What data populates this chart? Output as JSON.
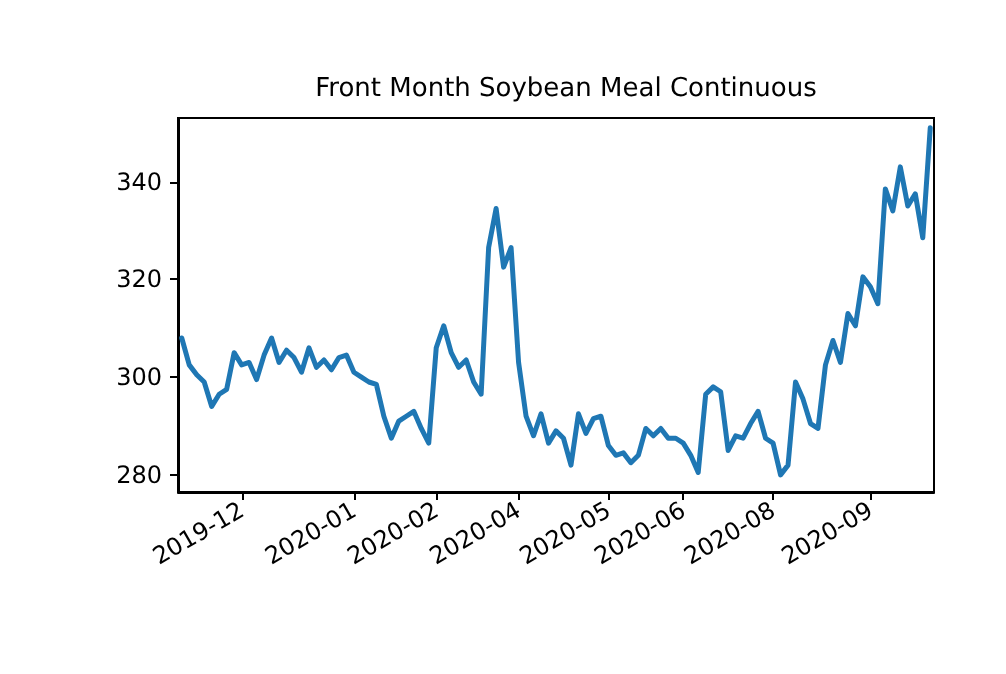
{
  "chart_data": {
    "type": "line",
    "title": "Front Month Soybean Meal Continuous",
    "categories": [
      null,
      null,
      null,
      null,
      null,
      null,
      null,
      null,
      "2019-12",
      null,
      null,
      null,
      null,
      null,
      null,
      null,
      null,
      null,
      null,
      null,
      null,
      null,
      null,
      "2020-01",
      null,
      null,
      null,
      null,
      null,
      null,
      null,
      null,
      null,
      null,
      "2020-02",
      null,
      null,
      null,
      null,
      null,
      null,
      null,
      null,
      null,
      null,
      "2020-04",
      null,
      null,
      null,
      null,
      null,
      null,
      null,
      null,
      null,
      null,
      null,
      "2020-05",
      null,
      null,
      null,
      null,
      null,
      null,
      null,
      null,
      null,
      "2020-06",
      null,
      null,
      null,
      null,
      null,
      null,
      null,
      null,
      null,
      null,
      null,
      "2020-08",
      null,
      null,
      null,
      null,
      null,
      null,
      null,
      null,
      null,
      null,
      null,
      null,
      "2020-09",
      null,
      null,
      null,
      null,
      null,
      null,
      null,
      null
    ],
    "series": [
      {
        "color": "#1f77b4",
        "values": [
          308,
          302.5,
          300.5,
          299,
          294,
          296.5,
          297.5,
          305,
          302.5,
          303,
          299.5,
          304.5,
          308,
          303,
          305.5,
          304,
          301,
          306,
          302,
          303.5,
          301.5,
          304,
          304.5,
          301,
          300,
          299,
          298.5,
          292,
          287.5,
          291,
          292,
          293,
          289.5,
          286.5,
          306,
          310.5,
          305,
          302,
          303.5,
          299,
          296.5,
          326.5,
          334.5,
          322.5,
          326.5,
          303,
          292,
          288,
          292.5,
          286.5,
          289,
          287.5,
          282,
          292.5,
          288.5,
          291.5,
          292,
          286,
          284,
          284.5,
          282.5,
          284,
          289.5,
          288,
          289.5,
          287.5,
          287.5,
          286.5,
          284,
          280.5,
          296.5,
          298,
          297,
          285,
          288,
          287.5,
          290.5,
          293,
          287.5,
          286.5,
          280,
          282,
          299,
          295.5,
          290.5,
          289.5,
          302.5,
          307.5,
          303,
          313,
          310.5,
          320.5,
          318.5,
          315,
          338.5,
          334,
          343,
          335,
          337.5,
          328.5,
          351
        ]
      }
    ],
    "ylim": [
      276.5,
      353
    ],
    "yticks": [
      280,
      300,
      320,
      340
    ],
    "grid": false,
    "marker": "none",
    "line_style": "solid"
  }
}
